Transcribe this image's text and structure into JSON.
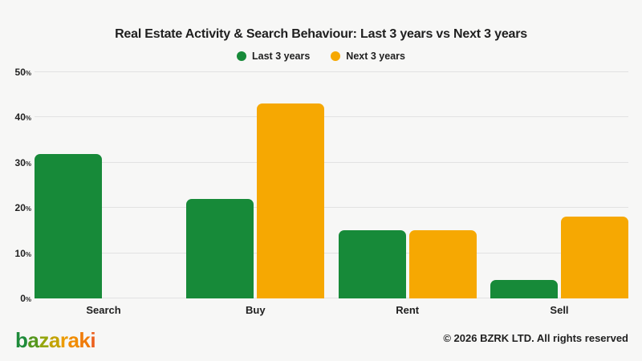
{
  "chart_data": {
    "type": "bar",
    "title": "Real Estate Activity & Search Behaviour: Last 3 years vs Next 3 years",
    "categories": [
      "Search",
      "Buy",
      "Rent",
      "Sell"
    ],
    "series": [
      {
        "name": "Last 3 years",
        "color": "#178A39",
        "values": [
          32,
          22,
          15,
          4
        ]
      },
      {
        "name": "Next 3 years",
        "color": "#F6A802",
        "values": [
          null,
          43,
          15,
          18
        ]
      }
    ],
    "xlabel": "",
    "ylabel": "",
    "ylim": [
      0,
      50
    ],
    "yticks": [
      0,
      10,
      20,
      30,
      40,
      50
    ],
    "ytick_suffix": "%",
    "grid": true,
    "legend_position": "top"
  },
  "footer": {
    "logo_text": "bazaraki",
    "logo_letters": [
      {
        "char": "b",
        "color": "#1F8B3B"
      },
      {
        "char": "a",
        "color": "#55971D"
      },
      {
        "char": "z",
        "color": "#95A60D"
      },
      {
        "char": "a",
        "color": "#C3A303"
      },
      {
        "char": "r",
        "color": "#EC9B00"
      },
      {
        "char": "a",
        "color": "#F18C00"
      },
      {
        "char": "k",
        "color": "#F07C0A"
      },
      {
        "char": "i",
        "color": "#EB601E"
      }
    ],
    "copyright": "© 2026 BZRK LTD. All rights reserved"
  },
  "colors": {
    "background": "#F7F7F6",
    "gridline": "#E2E2E2",
    "text": "#1F1F1F"
  }
}
